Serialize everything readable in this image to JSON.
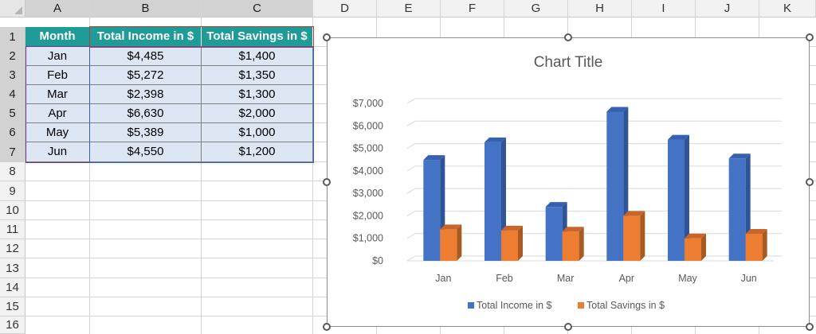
{
  "columns": [
    "A",
    "B",
    "C",
    "D",
    "E",
    "F",
    "G",
    "H",
    "I",
    "J",
    "K"
  ],
  "rows": [
    "1",
    "2",
    "3",
    "4",
    "5",
    "6",
    "7",
    "8",
    "9",
    "10",
    "11",
    "12",
    "13",
    "14",
    "15",
    "16"
  ],
  "table": {
    "headers": [
      "Month",
      "Total Income in $",
      "Total Savings in $"
    ],
    "rows": [
      [
        "Jan",
        "$4,485",
        "$1,400"
      ],
      [
        "Feb",
        "$5,272",
        "$1,350"
      ],
      [
        "Mar",
        "$2,398",
        "$1,300"
      ],
      [
        "Apr",
        "$6,630",
        "$2,000"
      ],
      [
        "May",
        "$5,389",
        "$1,000"
      ],
      [
        "Jun",
        "$4,550",
        "$1,200"
      ]
    ]
  },
  "colors": {
    "income": "#4472c4",
    "savings": "#ed7d31",
    "header_fill": "#1f9c98",
    "data_fill": "#dde6f3"
  },
  "chart_data": {
    "type": "bar",
    "title": "Chart Title",
    "categories": [
      "Jan",
      "Feb",
      "Mar",
      "Apr",
      "May",
      "Jun"
    ],
    "series": [
      {
        "name": "Total Income in $",
        "values": [
          4485,
          5272,
          2398,
          6630,
          5389,
          4550
        ]
      },
      {
        "name": "Total Savings in $",
        "values": [
          1400,
          1350,
          1300,
          2000,
          1000,
          1200
        ]
      }
    ],
    "y_ticks": [
      "$0",
      "$1,000",
      "$2,000",
      "$3,000",
      "$4,000",
      "$5,000",
      "$6,000",
      "$7,000"
    ],
    "ylim": [
      0,
      7000
    ],
    "style": "3d-clustered-column",
    "grid": true,
    "legend_position": "bottom"
  }
}
